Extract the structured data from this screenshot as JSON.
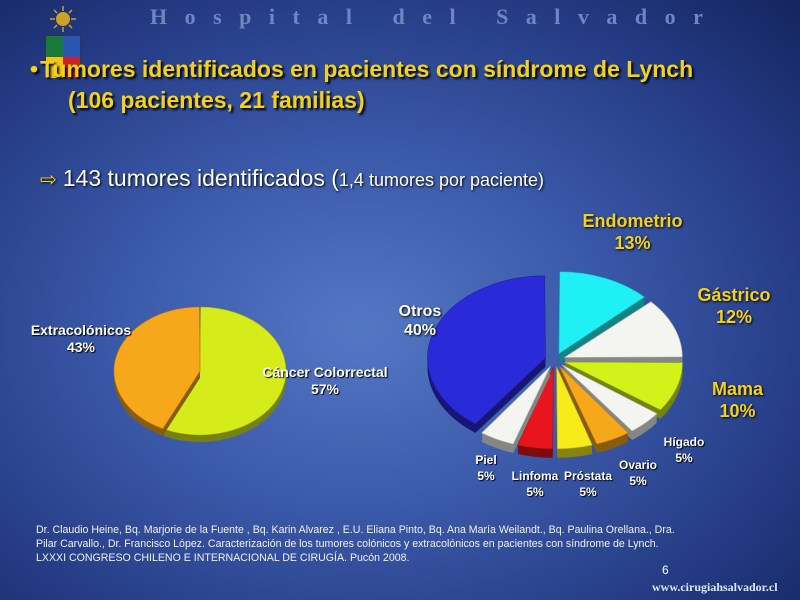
{
  "header": {
    "title": "Hospital del Salvador"
  },
  "bullet": {
    "line1": "Tumores identificados en pacientes con síndrome de Lynch",
    "line2": "(106 pacientes, 21 familias)"
  },
  "summary": {
    "main": "143 tumores identificados (",
    "detail": "1,4 tumores por paciente)"
  },
  "chart_data": [
    {
      "type": "pie",
      "slices": [
        {
          "label": "Cáncer Colorrectal",
          "value": 57,
          "display": "57%",
          "color": "#d6ec1a"
        },
        {
          "label": "Extracolónicos",
          "value": 43,
          "display": "43%",
          "color": "#f7a81a"
        }
      ]
    },
    {
      "type": "pie",
      "slices": [
        {
          "label": "Endometrio",
          "value": 13,
          "display": "13%",
          "color": "#1ef0f5"
        },
        {
          "label": "Gástrico",
          "value": 12,
          "display": "12%",
          "color": "#f4f4f0"
        },
        {
          "label": "Mama",
          "value": 10,
          "display": "10%",
          "color": "#d2f21a"
        },
        {
          "label": "Hígado",
          "value": 5,
          "display": "5%",
          "color": "#f4f4f0"
        },
        {
          "label": "Ovario",
          "value": 5,
          "display": "5%",
          "color": "#f7a81a"
        },
        {
          "label": "Próstata",
          "value": 5,
          "display": "5%",
          "color": "#f7ec1a"
        },
        {
          "label": "Linfoma",
          "value": 5,
          "display": "5%",
          "color": "#e8141e"
        },
        {
          "label": "Piel",
          "value": 5,
          "display": "5%",
          "color": "#f4f4f0"
        },
        {
          "label": "Otros",
          "value": 40,
          "display": "40%",
          "color": "#2a2ad8"
        }
      ]
    }
  ],
  "reference": {
    "line1": "Dr. Claudio Heine, Bq. Marjorie de la Fuente , Bq. Karin Alvarez , E.U. Eliana Pinto, Bq. Ana María Weilandt., Bq. Paulina Orellana., Dra.",
    "line2": "Pilar Carvallo., Dr. Francisco López. Caracterización de los tumores colónicos y extracolónicos en pacientes con síndrome de Lynch.",
    "line3": "LXXXI CONGRESO CHILENO E INTERNACIONAL DE CIRUGÍA. Pucón 2008."
  },
  "page_number": "6",
  "footer_site": "www.cirugiahsalvador.cl"
}
